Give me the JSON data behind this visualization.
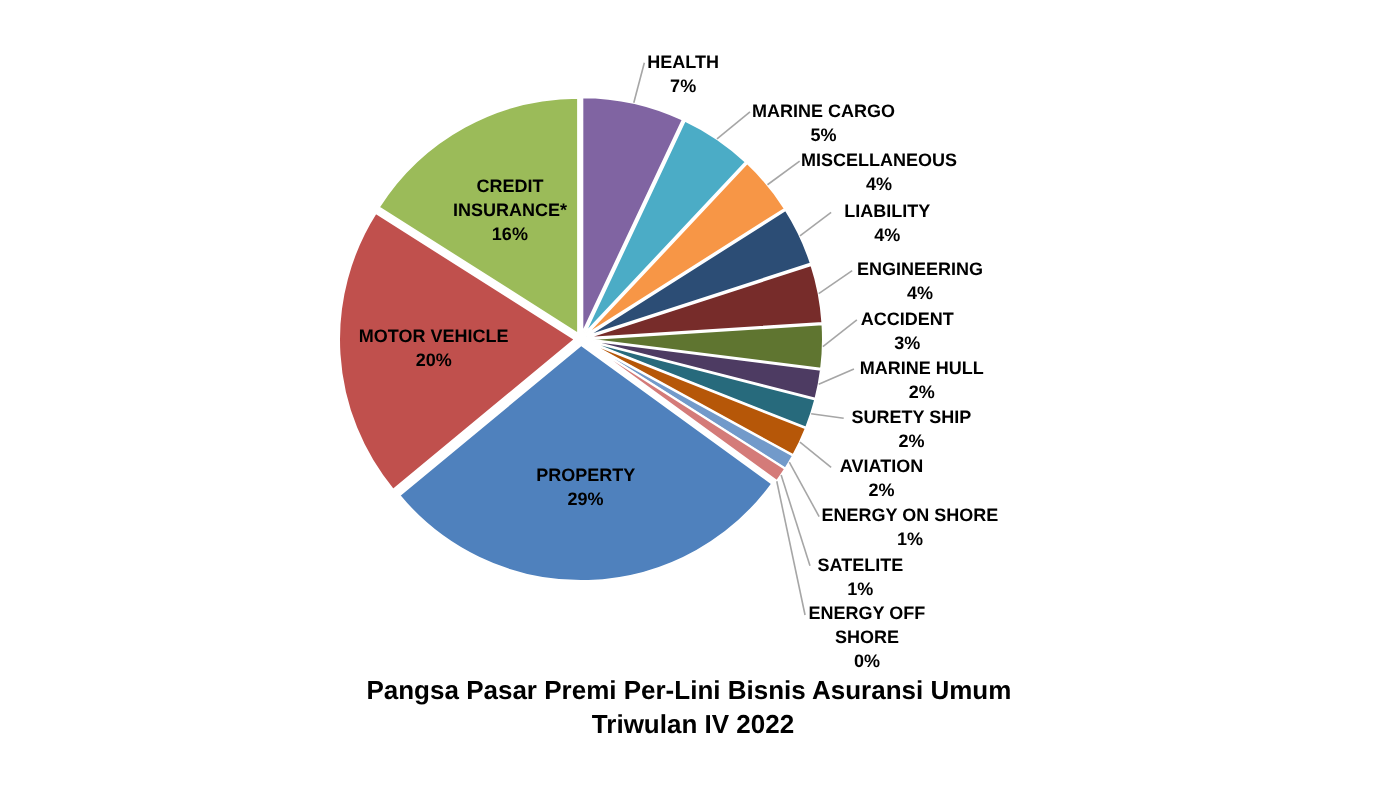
{
  "chart_data": {
    "type": "pie",
    "title": "Pangsa Pasar  Premi Per-Lini Bisnis Asuransi Umum\nTriwulan IV 2022",
    "categories": [
      "HEALTH",
      "MARINE CARGO",
      "MISCELLANEOUS",
      "LIABILITY",
      "ENGINEERING",
      "ACCIDENT",
      "MARINE HULL",
      "SURETY SHIP",
      "AVIATION",
      "ENERGY ON SHORE",
      "SATELITE",
      "ENERGY OFF SHORE",
      "PROPERTY",
      "MOTOR VEHICLE",
      "CREDIT INSURANCE*"
    ],
    "values": [
      7,
      5,
      4,
      4,
      4,
      3,
      2,
      2,
      2,
      1,
      1,
      0,
      29,
      20,
      16
    ],
    "value_labels": [
      "7%",
      "5%",
      "4%",
      "4%",
      "4%",
      "3%",
      "2%",
      "2%",
      "2%",
      "1%",
      "1%",
      "0%",
      "29%",
      "20%",
      "16%"
    ],
    "colors": [
      "#8064a2",
      "#4bacc6",
      "#f79646",
      "#2c4d75",
      "#772c2a",
      "#5f7530",
      "#4d3b62",
      "#276a7c",
      "#b65708",
      "#729aca",
      "#d47b79",
      "#afc97a",
      "#4f81bd",
      "#c0504d",
      "#9bbb59"
    ]
  }
}
